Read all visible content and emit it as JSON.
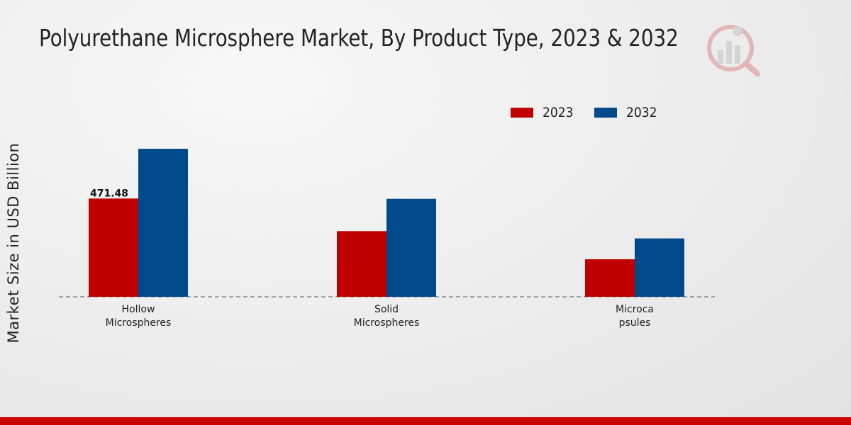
{
  "title": "Polyurethane Microsphere Market, By Product Type, 2023 & 2032",
  "colors": {
    "series_2023": "#c00000",
    "series_2032": "#004a8b",
    "accent_bar": "#cc0000"
  },
  "logo": {
    "icon": "market-research-logo-icon"
  },
  "chart_data": {
    "type": "bar",
    "title": "Polyurethane Microsphere Market, By Product Type, 2023 & 2032",
    "xlabel": "",
    "ylabel": "Market Size in USD Billion",
    "categories": [
      {
        "lines": [
          "Hollow",
          "Microspheres"
        ]
      },
      {
        "lines": [
          "Solid",
          "Microspheres"
        ]
      },
      {
        "lines": [
          "Microca",
          "psules"
        ]
      }
    ],
    "series": [
      {
        "name": "2023",
        "color": "#c00000",
        "values": [
          471.48,
          315.0,
          180.0
        ]
      },
      {
        "name": "2032",
        "color": "#004a8b",
        "values": [
          710.0,
          470.0,
          280.0
        ]
      }
    ],
    "data_labels": [
      {
        "series": 0,
        "category": 0,
        "text": "471.48"
      }
    ],
    "ylim": [
      0,
      1050
    ],
    "grid": false,
    "baseline": "dashed",
    "legend_position": "top-right"
  }
}
